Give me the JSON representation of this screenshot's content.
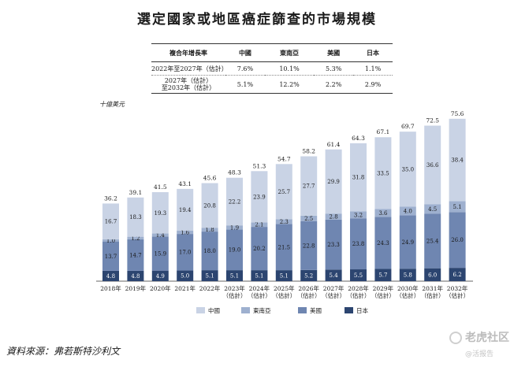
{
  "title": "選定國家或地區癌症篩查的市場規模",
  "cagr_table": {
    "headers": [
      "複合年增長率",
      "中國",
      "東南亞",
      "美國",
      "日本"
    ],
    "rows": [
      {
        "label": "2022年至2027年（估計）",
        "values": [
          "7.6%",
          "10.1%",
          "5.3%",
          "1.1%"
        ]
      },
      {
        "label_line1": "2027年（估計）",
        "label_line2": "至2032年（估計）",
        "values": [
          "5.1%",
          "12.2%",
          "2.2%",
          "2.9%"
        ]
      }
    ]
  },
  "unit": "十億美元",
  "chart_data": {
    "type": "bar",
    "stacked": true,
    "categories": [
      "2018年",
      "2019年",
      "2020年",
      "2021年",
      "2022年",
      "2023年",
      "2024年",
      "2025年",
      "2026年",
      "2027年",
      "2028年",
      "2029年",
      "2030年",
      "2031年",
      "2032年"
    ],
    "category_sub": [
      "",
      "",
      "",
      "",
      "",
      "（估計）",
      "（估計）",
      "（估計）",
      "（估計）",
      "（估計）",
      "（估計）",
      "（估計）",
      "（估計）",
      "（估計）",
      "（估計）"
    ],
    "series": [
      {
        "name": "日本",
        "color": "#2c4570",
        "values": [
          4.8,
          4.8,
          4.9,
          5.0,
          5.1,
          5.1,
          5.1,
          5.1,
          5.2,
          5.4,
          5.5,
          5.7,
          5.8,
          6.0,
          6.2
        ]
      },
      {
        "name": "美國",
        "color": "#6f86b1",
        "values": [
          13.7,
          14.7,
          15.9,
          17.0,
          18.0,
          19.0,
          20.2,
          21.5,
          22.8,
          23.3,
          23.8,
          24.3,
          24.9,
          25.4,
          26.0
        ]
      },
      {
        "name": "東南亞",
        "color": "#9eb0cf",
        "values": [
          1.0,
          1.2,
          1.4,
          1.6,
          1.8,
          1.9,
          2.1,
          2.3,
          2.5,
          2.8,
          3.2,
          3.6,
          4.0,
          4.5,
          5.1
        ]
      },
      {
        "name": "中國",
        "color": "#c9d3e5",
        "values": [
          16.7,
          18.3,
          19.3,
          19.4,
          20.8,
          22.2,
          23.9,
          25.7,
          27.7,
          29.9,
          31.8,
          33.5,
          35.0,
          36.6,
          38.4
        ]
      }
    ],
    "totals": [
      36.2,
      39.1,
      41.5,
      43.1,
      45.6,
      48.3,
      51.3,
      54.7,
      58.2,
      61.4,
      64.3,
      67.1,
      69.7,
      72.5,
      75.6
    ],
    "legend": [
      "中國",
      "東南亞",
      "美國",
      "日本"
    ],
    "ylim": [
      0,
      80
    ],
    "ylabel": "十億美元"
  },
  "source": "資料來源：弗若斯特沙利文",
  "watermark": {
    "brand": "老虎社区",
    "sub": "@活报告"
  }
}
